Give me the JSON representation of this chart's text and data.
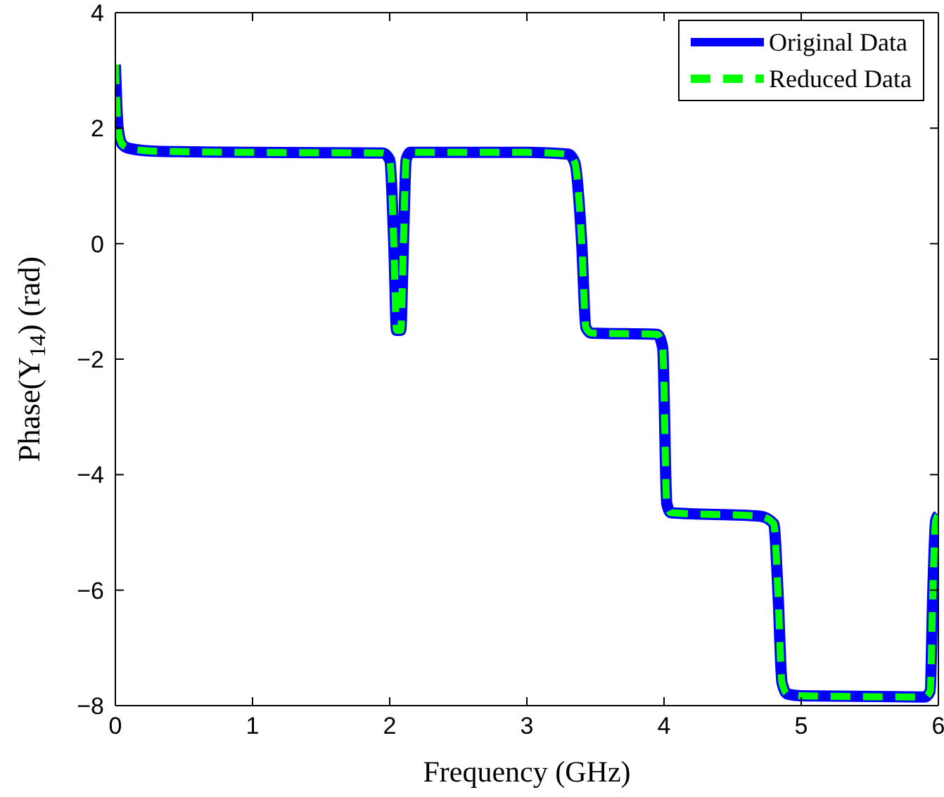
{
  "chart_data": {
    "type": "line",
    "xlabel": "Frequency (GHz)",
    "ylabel": "Phase(Y$_{14}$) (rad)",
    "x": [
      0,
      0.02,
      0.05,
      0.1,
      0.3,
      1,
      1.95,
      2.0,
      2.03,
      2.05,
      2.08,
      2.1,
      2.12,
      2.15,
      3,
      3.3,
      3.35,
      3.4,
      3.43,
      3.47,
      3.95,
      3.99,
      4.02,
      4.05,
      4.7,
      4.8,
      4.83,
      4.86,
      4.9,
      5.0,
      5.9,
      5.94,
      5.96,
      5.98,
      6
    ],
    "series": [
      {
        "name": "Original Data",
        "color": "#0000ff",
        "line_style": "solid",
        "values": [
          3.1,
          2.0,
          1.72,
          1.65,
          1.6,
          1.58,
          1.57,
          1.45,
          0,
          -1.5,
          -1.5,
          0,
          1.45,
          1.58,
          1.58,
          1.55,
          1.4,
          0,
          -1.45,
          -1.55,
          -1.57,
          -1.8,
          -4.5,
          -4.66,
          -4.72,
          -4.85,
          -6,
          -7.6,
          -7.8,
          -7.83,
          -7.85,
          -7.75,
          -6,
          -4.8,
          -4.7
        ]
      },
      {
        "name": "Reduced Data",
        "color": "#00ff00",
        "line_style": "dashed",
        "values": [
          3.1,
          2.0,
          1.72,
          1.65,
          1.6,
          1.58,
          1.57,
          1.45,
          0,
          -1.5,
          -1.5,
          0,
          1.45,
          1.58,
          1.58,
          1.55,
          1.4,
          0,
          -1.45,
          -1.55,
          -1.57,
          -1.8,
          -4.5,
          -4.66,
          -4.72,
          -4.85,
          -6,
          -7.6,
          -7.8,
          -7.83,
          -7.85,
          -7.75,
          -6,
          -4.8,
          -4.7
        ]
      }
    ],
    "xlim": [
      0,
      6
    ],
    "xticks": [
      0,
      1,
      2,
      3,
      4,
      5,
      6
    ],
    "ylim": [
      -8,
      4
    ],
    "yticks": [
      -8,
      -6,
      -4,
      -2,
      0,
      2,
      4
    ],
    "grid": false,
    "legend": "top right",
    "marker": "none"
  }
}
